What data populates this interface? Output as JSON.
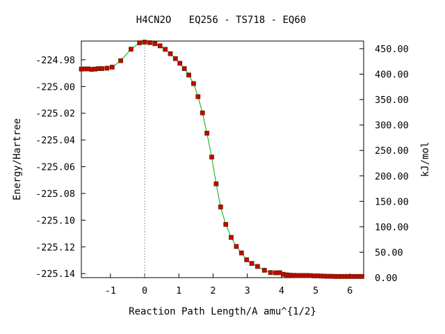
{
  "chart_data": {
    "type": "line",
    "title": "H4CN2O   EQ256 - TS718 - EQ60",
    "xlabel": "Reaction Path Length/A amu^{1/2}",
    "ylabel": "Energy/Hartree",
    "y2label": "kJ/mol",
    "xlim": [
      -1.85,
      6.4
    ],
    "ylim": [
      -225.143,
      -224.966
    ],
    "y2lim": [
      0,
      465
    ],
    "x_ticks": [
      -1,
      0,
      1,
      2,
      3,
      4,
      5,
      6
    ],
    "x_tick_labels": [
      "-1",
      "0",
      "1",
      "2",
      "3",
      "4",
      "5",
      "6"
    ],
    "y_ticks": [
      -224.98,
      -225.0,
      -225.02,
      -225.04,
      -225.06,
      -225.08,
      -225.1,
      -225.12,
      -225.14
    ],
    "y_tick_labels": [
      "-224.98",
      "-225.00",
      "-225.02",
      "-225.04",
      "-225.06",
      "-225.08",
      "-225.10",
      "-225.12",
      "-225.14"
    ],
    "y2_ticks": [
      0,
      50,
      100,
      150,
      200,
      250,
      300,
      350,
      400,
      450
    ],
    "y2_tick_labels": [
      "0.00",
      "50.00",
      "100.00",
      "150.00",
      "200.00",
      "250.00",
      "300.00",
      "350.00",
      "400.00",
      "450.00"
    ],
    "ts_marker_x": 0,
    "grid": false,
    "colors": {
      "line": "#00aa00",
      "points": "#cc0000",
      "point_edge": "#5a2a00",
      "ts_line": "#999999"
    },
    "series": [
      {
        "x": [
          -1.85,
          -1.75,
          -1.65,
          -1.55,
          -1.45,
          -1.35,
          -1.25,
          -1.1,
          -0.95,
          -0.7,
          -0.4,
          -0.15,
          0.0,
          0.15,
          0.3,
          0.45,
          0.6,
          0.75,
          0.9,
          1.03,
          1.16,
          1.29,
          1.43,
          1.56,
          1.69,
          1.82,
          1.96,
          2.09,
          2.22,
          2.37,
          2.53,
          2.68,
          2.83,
          2.98,
          3.13,
          3.3,
          3.5,
          3.68,
          3.83,
          3.95,
          4.05,
          4.15,
          4.25,
          4.35,
          4.45,
          4.55,
          4.65,
          4.75,
          4.85,
          4.95,
          5.05,
          5.15,
          5.25,
          5.35,
          5.45,
          5.55,
          5.65,
          5.75,
          5.85,
          5.95,
          6.05,
          6.15,
          6.25,
          6.35
        ],
        "y": [
          -224.987,
          -224.9868,
          -224.9868,
          -224.9872,
          -224.987,
          -224.9866,
          -224.9866,
          -224.9863,
          -224.9855,
          -224.9807,
          -224.9721,
          -224.9673,
          -224.9668,
          -224.9672,
          -224.968,
          -224.9696,
          -224.9722,
          -224.9755,
          -224.9791,
          -224.9826,
          -224.9866,
          -224.9914,
          -224.9978,
          -225.0076,
          -225.0197,
          -225.0349,
          -225.0528,
          -225.0728,
          -225.0901,
          -225.1032,
          -225.1129,
          -225.1197,
          -225.1245,
          -225.1296,
          -225.1324,
          -225.1346,
          -225.1375,
          -225.1392,
          -225.1394,
          -225.1393,
          -225.1405,
          -225.1409,
          -225.1412,
          -225.1413,
          -225.1414,
          -225.1414,
          -225.1414,
          -225.1414,
          -225.1415,
          -225.1417,
          -225.1417,
          -225.1418,
          -225.1419,
          -225.142,
          -225.142,
          -225.1421,
          -225.1421,
          -225.1421,
          -225.1421,
          -225.1421,
          -225.1421,
          -225.1421,
          -225.1421,
          -225.1421
        ]
      }
    ]
  }
}
